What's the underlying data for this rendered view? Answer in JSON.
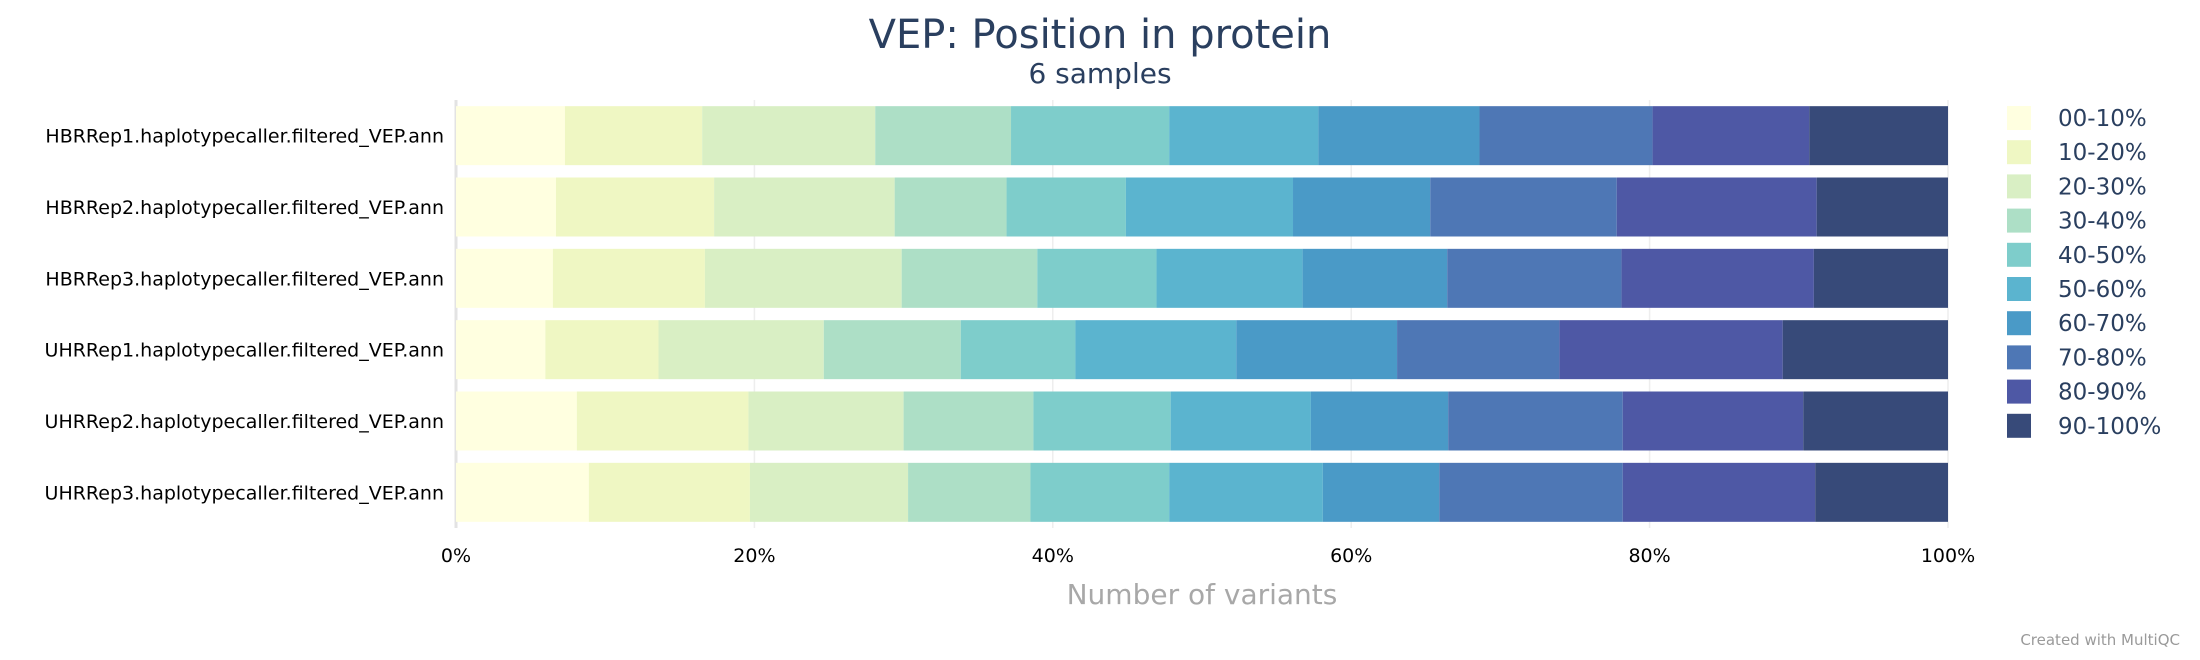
{
  "chart_data": {
    "type": "bar",
    "orientation": "horizontal",
    "stacked": true,
    "normalized": true,
    "title": "VEP: Position in protein",
    "subtitle": "6 samples",
    "xlabel": "Number of variants",
    "ylabel": "",
    "xlim": [
      0,
      100
    ],
    "x_ticks": [
      "0%",
      "20%",
      "40%",
      "60%",
      "80%",
      "100%"
    ],
    "grid": true,
    "legend_position": "right",
    "categories": [
      "HBRRep1.haplotypecaller.filtered_VEP.ann",
      "HBRRep2.haplotypecaller.filtered_VEP.ann",
      "HBRRep3.haplotypecaller.filtered_VEP.ann",
      "UHRRep1.haplotypecaller.filtered_VEP.ann",
      "UHRRep2.haplotypecaller.filtered_VEP.ann",
      "UHRRep3.haplotypecaller.filtered_VEP.ann"
    ],
    "series": [
      {
        "name": "00-10%",
        "color": "#ffffe0",
        "values": [
          7.3,
          6.7,
          6.5,
          6.0,
          8.1,
          8.9
        ]
      },
      {
        "name": "10-20%",
        "color": "#eff7c3",
        "values": [
          9.2,
          10.6,
          10.2,
          7.6,
          11.5,
          10.8
        ]
      },
      {
        "name": "20-30%",
        "color": "#d9efc4",
        "values": [
          11.6,
          12.1,
          13.2,
          11.1,
          10.4,
          10.6
        ]
      },
      {
        "name": "30-40%",
        "color": "#addfc6",
        "values": [
          9.1,
          7.5,
          9.1,
          9.2,
          8.7,
          8.2
        ]
      },
      {
        "name": "40-50%",
        "color": "#7ecdcb",
        "values": [
          10.6,
          8.0,
          8.0,
          7.7,
          9.2,
          9.3
        ]
      },
      {
        "name": "50-60%",
        "color": "#5bb4cf",
        "values": [
          10.0,
          11.2,
          9.8,
          10.8,
          9.4,
          10.3
        ]
      },
      {
        "name": "60-70%",
        "color": "#4a9ac7",
        "values": [
          10.8,
          9.2,
          9.7,
          10.8,
          9.2,
          7.8
        ]
      },
      {
        "name": "70-80%",
        "color": "#4e77b5",
        "values": [
          11.6,
          12.5,
          11.7,
          10.9,
          11.7,
          12.3
        ]
      },
      {
        "name": "80-90%",
        "color": "#4e58a5",
        "values": [
          10.5,
          13.4,
          12.9,
          15.0,
          12.1,
          12.9
        ]
      },
      {
        "name": "90-100%",
        "color": "#374a79",
        "values": [
          9.3,
          8.8,
          9.0,
          11.1,
          9.7,
          8.9
        ]
      }
    ],
    "credit": "Created with MultiQC"
  }
}
